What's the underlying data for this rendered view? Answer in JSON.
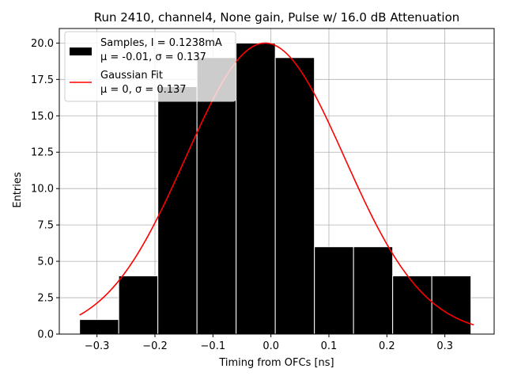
{
  "chart_data": {
    "type": "bar",
    "title": "Run 2410, channel4, None gain, Pulse w/ 16.0 dB Attenuation",
    "xlabel": "Timing from OFCs [ns]",
    "ylabel": "Entries",
    "xlim": [
      -0.365,
      0.385
    ],
    "ylim": [
      0,
      21
    ],
    "grid": true,
    "xticks": [
      -0.3,
      -0.2,
      -0.1,
      0.0,
      0.1,
      0.2,
      0.3
    ],
    "xtick_labels": [
      "−0.3",
      "−0.2",
      "−0.1",
      "0.0",
      "0.1",
      "0.2",
      "0.3"
    ],
    "yticks": [
      0,
      2.5,
      5,
      7.5,
      10,
      12.5,
      15,
      17.5,
      20
    ],
    "ytick_labels": [
      "0.0",
      "2.5",
      "5.0",
      "7.5",
      "10.0",
      "12.5",
      "15.0",
      "17.5",
      "20.0"
    ],
    "legend_position": "top-left",
    "bin_edges": [
      -0.33,
      -0.2625,
      -0.195,
      -0.1275,
      -0.06,
      0.0075,
      0.075,
      0.1425,
      0.21,
      0.2775,
      0.345
    ],
    "series": [
      {
        "name": "Samples, I = 0.1238mA",
        "stats_label": "μ = -0.01, σ = 0.137",
        "kind": "histogram",
        "color": "#000000",
        "values": [
          1,
          4,
          17,
          19,
          20,
          19,
          6,
          6,
          4,
          4
        ]
      },
      {
        "name": "Gaussian Fit",
        "stats_label": "μ = 0, σ = 0.137",
        "kind": "line",
        "color": "#ff0000",
        "amplitude": 20,
        "mu": -0.01,
        "sigma": 0.137,
        "x_range": [
          -0.33,
          0.35
        ]
      }
    ]
  }
}
